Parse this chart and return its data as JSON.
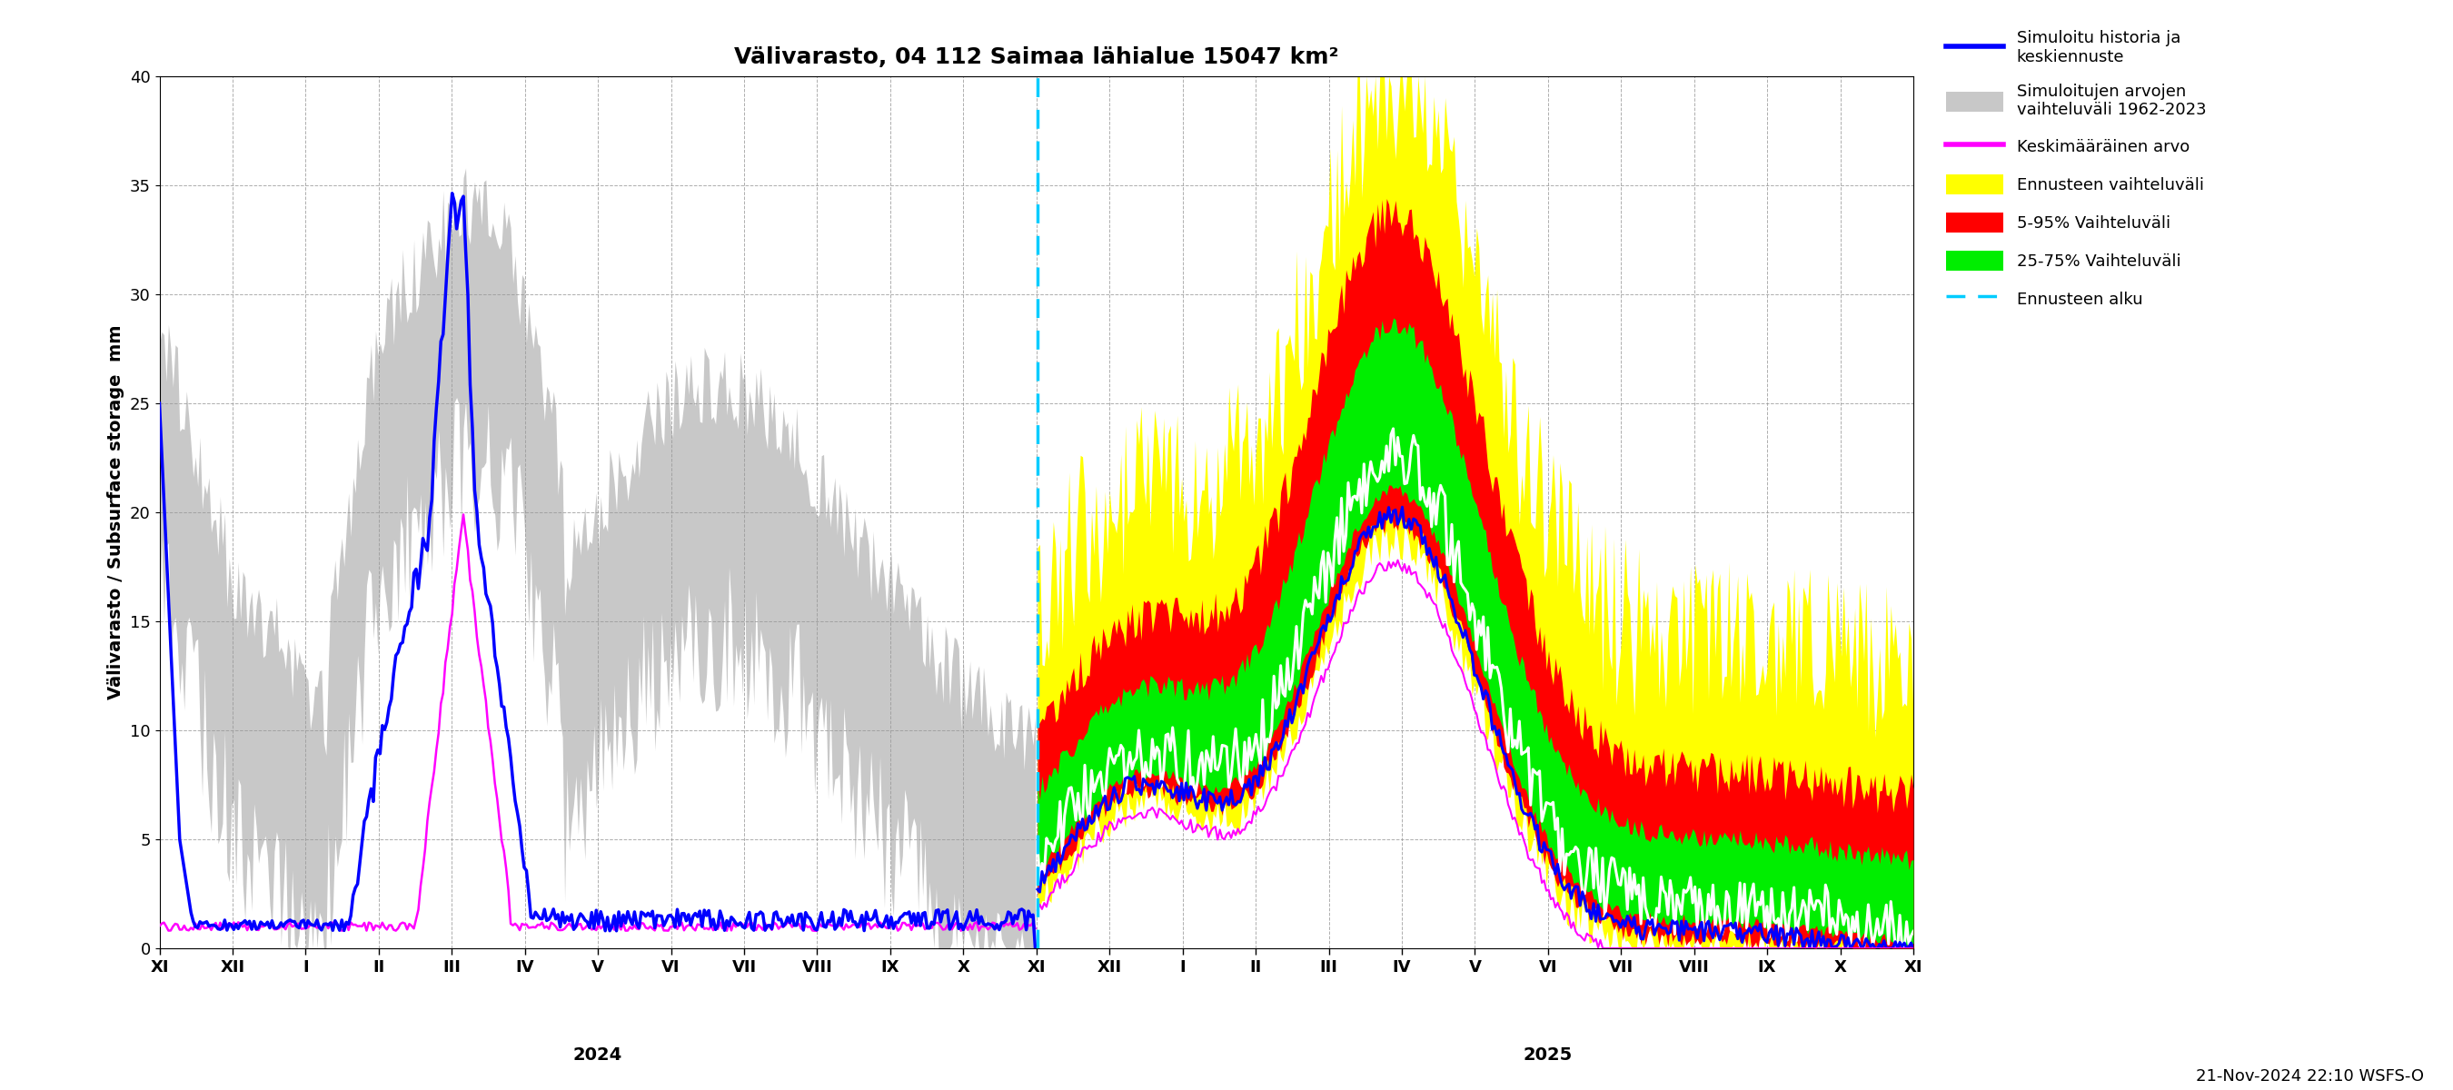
{
  "title": "Välivarasto, 04 112 Saimaa lähialue 15047 km²",
  "ylabel": "Välivarasto / Subsurface storage  mm",
  "ylim": [
    0,
    40
  ],
  "yticks": [
    0,
    5,
    10,
    15,
    20,
    25,
    30,
    35,
    40
  ],
  "footnote": "21-Nov-2024 22:10 WSFS-O",
  "legend_entries": [
    "Simuloitu historia ja\nkeskiennuste",
    "Simuloitujen arvojen\nvaihteluväli 1962-2023",
    "Keskimääräinen arvo",
    "Ennusteen vaihteluväli",
    "5-95% Vaihteluväli",
    "25-75% Vaihteluväli",
    "Ennusteen alku"
  ],
  "color_blue": "#0000ff",
  "color_gray": "#c8c8c8",
  "color_magenta": "#ff00ff",
  "color_yellow": "#ffff00",
  "color_red": "#ff0000",
  "color_green": "#00ee00",
  "color_white": "#ffffff",
  "color_cyan": "#00ccff",
  "background": "#ffffff",
  "grid_color": "#999999",
  "month_labels": [
    "XI",
    "XII",
    "I",
    "II",
    "III",
    "IV",
    "V",
    "VI",
    "VII",
    "VIII",
    "IX",
    "X",
    "XI",
    "XII",
    "I",
    "II",
    "III",
    "IV",
    "V",
    "VI",
    "VII",
    "VIII",
    "IX",
    "X",
    "XI"
  ],
  "year_label_1": "2024",
  "year_label_2": "2025",
  "title_fontsize": 18,
  "label_fontsize": 14,
  "tick_fontsize": 13,
  "legend_fontsize": 13
}
